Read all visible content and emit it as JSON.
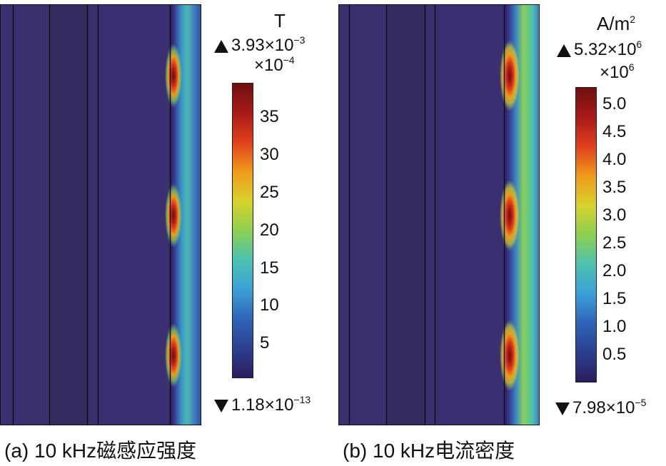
{
  "colormap": [
    "#2b1d5e",
    "#2b3f8f",
    "#2f64b8",
    "#3ca0d8",
    "#4cc2b0",
    "#8dcf52",
    "#d8d22c",
    "#f09a1c",
    "#e0401c",
    "#a81a18",
    "#6e1010"
  ],
  "panels": [
    {
      "caption": "(a) 10 kHz磁感应强度",
      "unit_base": "T",
      "unit_sup": "",
      "max_mantissa": "3.93×10",
      "max_exp": "−3",
      "multiplier_base": "×10",
      "multiplier_exp": "−4",
      "min_mantissa": "1.18×10",
      "min_exp": "−13",
      "ticks": [
        "35",
        "30",
        "25",
        "20",
        "15",
        "10",
        "5"
      ]
    },
    {
      "caption": "(b) 10 kHz电流密度",
      "unit_base": "A/m",
      "unit_sup": "2",
      "max_mantissa": "5.32×10",
      "max_exp": "6",
      "multiplier_base": "×10",
      "multiplier_exp": "6",
      "min_mantissa": "7.98×10",
      "min_exp": "−5",
      "ticks": [
        "5.0",
        "4.5",
        "4.0",
        "3.5",
        "3.0",
        "2.5",
        "2.0",
        "1.5",
        "1.0",
        "0.5"
      ]
    }
  ]
}
